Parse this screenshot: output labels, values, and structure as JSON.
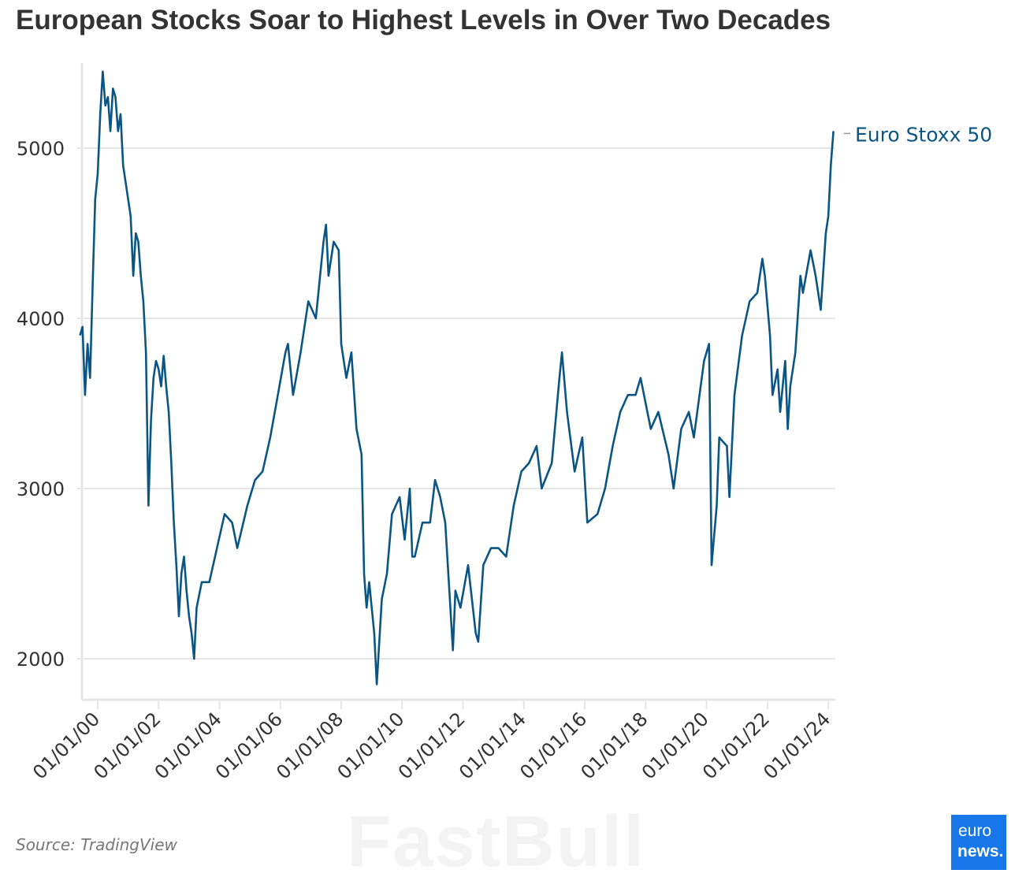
{
  "title": "European Stocks Soar to Highest Levels in Over Two Decades",
  "source": "Source: TradingView",
  "watermark": "FastBull",
  "logo": {
    "line1": "euro",
    "line2": "news.",
    "color": "#1877e8"
  },
  "chart_data": {
    "type": "line",
    "title": "European Stocks Soar to Highest Levels in Over Two Decades",
    "xlabel": "",
    "ylabel": "",
    "ylim": [
      1750,
      5500
    ],
    "xlim": [
      "1999-06",
      "2024-03"
    ],
    "yticks": [
      2000,
      3000,
      4000,
      5000
    ],
    "ytick_labels": [
      "2000",
      "3000",
      "4000",
      "5000"
    ],
    "xticks": [
      "2000-01",
      "2002-01",
      "2004-01",
      "2006-01",
      "2008-01",
      "2010-01",
      "2012-01",
      "2014-01",
      "2016-01",
      "2018-01",
      "2020-01",
      "2022-01",
      "2024-01"
    ],
    "xtick_labels": [
      "01/01/00",
      "01/01/02",
      "01/01/04",
      "01/01/06",
      "01/01/08",
      "01/01/10",
      "01/01/12",
      "01/01/14",
      "01/01/16",
      "01/01/18",
      "01/01/20",
      "01/01/22",
      "01/01/24"
    ],
    "grid": "horizontal",
    "legend": "end-of-line label, right",
    "series": [
      {
        "name": "Euro Stoxx 50",
        "color": "#0b5585",
        "points": [
          [
            "1999-06",
            3900
          ],
          [
            "1999-07",
            3950
          ],
          [
            "1999-08",
            3550
          ],
          [
            "1999-09",
            3850
          ],
          [
            "1999-10",
            3650
          ],
          [
            "1999-11",
            4200
          ],
          [
            "1999-12",
            4700
          ],
          [
            "2000-01",
            4850
          ],
          [
            "2000-02",
            5200
          ],
          [
            "2000-03",
            5450
          ],
          [
            "2000-04",
            5250
          ],
          [
            "2000-05",
            5300
          ],
          [
            "2000-06",
            5100
          ],
          [
            "2000-07",
            5350
          ],
          [
            "2000-08",
            5300
          ],
          [
            "2000-09",
            5100
          ],
          [
            "2000-10",
            5200
          ],
          [
            "2000-11",
            4900
          ],
          [
            "2000-12",
            4800
          ],
          [
            "2001-01",
            4700
          ],
          [
            "2001-02",
            4600
          ],
          [
            "2001-03",
            4250
          ],
          [
            "2001-04",
            4500
          ],
          [
            "2001-05",
            4450
          ],
          [
            "2001-06",
            4250
          ],
          [
            "2001-07",
            4100
          ],
          [
            "2001-08",
            3800
          ],
          [
            "2001-09",
            2900
          ],
          [
            "2001-10",
            3400
          ],
          [
            "2001-11",
            3650
          ],
          [
            "2001-12",
            3750
          ],
          [
            "2002-01",
            3700
          ],
          [
            "2002-02",
            3600
          ],
          [
            "2002-03",
            3780
          ],
          [
            "2002-04",
            3600
          ],
          [
            "2002-05",
            3450
          ],
          [
            "2002-06",
            3150
          ],
          [
            "2002-07",
            2800
          ],
          [
            "2002-08",
            2550
          ],
          [
            "2002-09",
            2250
          ],
          [
            "2002-10",
            2500
          ],
          [
            "2002-11",
            2600
          ],
          [
            "2002-12",
            2400
          ],
          [
            "2003-01",
            2250
          ],
          [
            "2003-02",
            2150
          ],
          [
            "2003-03",
            2000
          ],
          [
            "2003-04",
            2300
          ],
          [
            "2003-06",
            2450
          ],
          [
            "2003-09",
            2450
          ],
          [
            "2003-12",
            2650
          ],
          [
            "2004-03",
            2850
          ],
          [
            "2004-06",
            2800
          ],
          [
            "2004-08",
            2650
          ],
          [
            "2004-12",
            2900
          ],
          [
            "2005-03",
            3050
          ],
          [
            "2005-06",
            3100
          ],
          [
            "2005-09",
            3300
          ],
          [
            "2005-12",
            3550
          ],
          [
            "2006-03",
            3800
          ],
          [
            "2006-04",
            3850
          ],
          [
            "2006-06",
            3550
          ],
          [
            "2006-09",
            3800
          ],
          [
            "2006-12",
            4100
          ],
          [
            "2007-03",
            4000
          ],
          [
            "2007-06",
            4450
          ],
          [
            "2007-07",
            4550
          ],
          [
            "2007-08",
            4250
          ],
          [
            "2007-10",
            4450
          ],
          [
            "2007-12",
            4400
          ],
          [
            "2008-01",
            3850
          ],
          [
            "2008-03",
            3650
          ],
          [
            "2008-05",
            3800
          ],
          [
            "2008-07",
            3350
          ],
          [
            "2008-09",
            3200
          ],
          [
            "2008-10",
            2500
          ],
          [
            "2008-11",
            2300
          ],
          [
            "2008-12",
            2450
          ],
          [
            "2009-02",
            2150
          ],
          [
            "2009-03",
            1850
          ],
          [
            "2009-05",
            2350
          ],
          [
            "2009-07",
            2500
          ],
          [
            "2009-09",
            2850
          ],
          [
            "2009-12",
            2950
          ],
          [
            "2010-02",
            2700
          ],
          [
            "2010-04",
            3000
          ],
          [
            "2010-05",
            2600
          ],
          [
            "2010-06",
            2600
          ],
          [
            "2010-09",
            2800
          ],
          [
            "2010-12",
            2800
          ],
          [
            "2011-02",
            3050
          ],
          [
            "2011-04",
            2950
          ],
          [
            "2011-06",
            2800
          ],
          [
            "2011-08",
            2300
          ],
          [
            "2011-09",
            2050
          ],
          [
            "2011-10",
            2400
          ],
          [
            "2011-12",
            2300
          ],
          [
            "2012-03",
            2550
          ],
          [
            "2012-06",
            2150
          ],
          [
            "2012-07",
            2100
          ],
          [
            "2012-09",
            2550
          ],
          [
            "2012-12",
            2650
          ],
          [
            "2013-03",
            2650
          ],
          [
            "2013-06",
            2600
          ],
          [
            "2013-09",
            2900
          ],
          [
            "2013-12",
            3100
          ],
          [
            "2014-03",
            3150
          ],
          [
            "2014-06",
            3250
          ],
          [
            "2014-08",
            3000
          ],
          [
            "2014-12",
            3150
          ],
          [
            "2015-03",
            3650
          ],
          [
            "2015-04",
            3800
          ],
          [
            "2015-06",
            3450
          ],
          [
            "2015-09",
            3100
          ],
          [
            "2015-12",
            3300
          ],
          [
            "2016-02",
            2800
          ],
          [
            "2016-06",
            2850
          ],
          [
            "2016-09",
            3000
          ],
          [
            "2016-12",
            3250
          ],
          [
            "2017-03",
            3450
          ],
          [
            "2017-06",
            3550
          ],
          [
            "2017-09",
            3550
          ],
          [
            "2017-11",
            3650
          ],
          [
            "2018-03",
            3350
          ],
          [
            "2018-06",
            3450
          ],
          [
            "2018-10",
            3200
          ],
          [
            "2018-12",
            3000
          ],
          [
            "2019-03",
            3350
          ],
          [
            "2019-06",
            3450
          ],
          [
            "2019-08",
            3300
          ],
          [
            "2019-12",
            3750
          ],
          [
            "2020-02",
            3850
          ],
          [
            "2020-03",
            2550
          ],
          [
            "2020-05",
            2900
          ],
          [
            "2020-06",
            3300
          ],
          [
            "2020-09",
            3250
          ],
          [
            "2020-10",
            2950
          ],
          [
            "2020-12",
            3550
          ],
          [
            "2021-03",
            3900
          ],
          [
            "2021-06",
            4100
          ],
          [
            "2021-09",
            4150
          ],
          [
            "2021-11",
            4350
          ],
          [
            "2021-12",
            4250
          ],
          [
            "2022-02",
            3900
          ],
          [
            "2022-03",
            3550
          ],
          [
            "2022-05",
            3700
          ],
          [
            "2022-06",
            3450
          ],
          [
            "2022-08",
            3750
          ],
          [
            "2022-09",
            3350
          ],
          [
            "2022-10",
            3600
          ],
          [
            "2022-12",
            3800
          ],
          [
            "2023-02",
            4250
          ],
          [
            "2023-03",
            4150
          ],
          [
            "2023-06",
            4400
          ],
          [
            "2023-08",
            4250
          ],
          [
            "2023-10",
            4050
          ],
          [
            "2023-12",
            4500
          ],
          [
            "2024-01",
            4600
          ],
          [
            "2024-02",
            4900
          ],
          [
            "2024-03",
            5100
          ]
        ]
      }
    ]
  }
}
